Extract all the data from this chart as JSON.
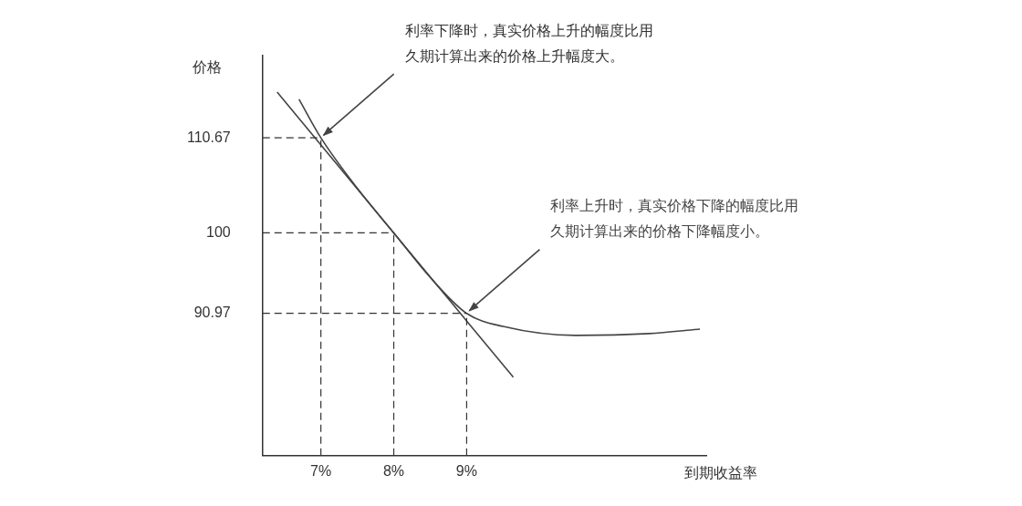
{
  "chart_data": {
    "type": "line",
    "xlabel": "到期收益率",
    "ylabel": "价格",
    "xlim": [
      6.2,
      12.3
    ],
    "xticks": [
      {
        "value": 7,
        "label": "7%"
      },
      {
        "value": 8,
        "label": "8%"
      },
      {
        "value": 9,
        "label": "9%"
      }
    ],
    "ylim": [
      75,
      120
    ],
    "yticks": [
      110.67,
      100,
      90.97
    ],
    "series": [
      {
        "color": "#444444",
        "x": [
          6.7,
          7,
          7.5,
          8,
          8.5,
          9,
          9.5,
          10.5,
          11.5,
          12.2
        ],
        "values": [
          115,
          110.67,
          105,
          100,
          95,
          90.97,
          89.5,
          88.5,
          88.7,
          89.2
        ]
      },
      {
        "color": "#444444",
        "x": [
          6.4,
          9.64
        ],
        "values": [
          115.8,
          83.8
        ]
      }
    ],
    "ref_lines": [
      {
        "axis": "x",
        "value": 7,
        "line_style": "dashed",
        "color": "#333333"
      },
      {
        "axis": "x",
        "value": 8,
        "line_style": "dashed",
        "color": "#333333"
      },
      {
        "axis": "x",
        "value": 9,
        "line_style": "dashed",
        "color": "#333333"
      },
      {
        "axis": "y",
        "value": 110.67,
        "line_style": "dashed",
        "color": "#333333"
      },
      {
        "axis": "y",
        "value": 100,
        "line_style": "dashed",
        "color": "#333333"
      },
      {
        "axis": "y",
        "value": 90.97,
        "line_style": "dashed",
        "color": "#333333"
      }
    ],
    "annotations": [
      {
        "text": "利率下降时，真实价格上升的幅度比用久期计算出来的价格上升幅度大。",
        "x": 7,
        "y": 110.67
      },
      {
        "text": "利率上升时，真实价格下降的幅度比用久期计算出来的价格下降幅度小。",
        "x": 9,
        "y": 90.97
      }
    ],
    "grid": false,
    "legend": false,
    "marker": "none",
    "line_style": "solid"
  }
}
